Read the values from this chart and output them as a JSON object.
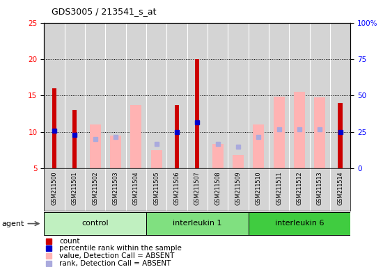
{
  "title": "GDS3005 / 213541_s_at",
  "samples": [
    "GSM211500",
    "GSM211501",
    "GSM211502",
    "GSM211503",
    "GSM211504",
    "GSM211505",
    "GSM211506",
    "GSM211507",
    "GSM211508",
    "GSM211509",
    "GSM211510",
    "GSM211511",
    "GSM211512",
    "GSM211513",
    "GSM211514"
  ],
  "red_bars": [
    16,
    13,
    null,
    null,
    null,
    null,
    13.7,
    20,
    null,
    null,
    null,
    null,
    null,
    null,
    14
  ],
  "pink_bars": [
    null,
    null,
    11,
    9.5,
    13.7,
    7.5,
    null,
    null,
    8.3,
    6.8,
    11,
    14.8,
    15.5,
    14.7,
    null
  ],
  "blue_squares": [
    10.2,
    9.6,
    null,
    null,
    null,
    null,
    10,
    11.3,
    null,
    null,
    null,
    null,
    null,
    null,
    10
  ],
  "purple_squares": [
    null,
    null,
    9.0,
    9.3,
    null,
    8.3,
    null,
    null,
    8.3,
    8.0,
    9.3,
    10.3,
    10.3,
    10.3,
    null
  ],
  "ylim": [
    5,
    25
  ],
  "yticks_left": [
    5,
    10,
    15,
    20,
    25
  ],
  "yticks_right": [
    0,
    25,
    50,
    75,
    100
  ],
  "red_color": "#cc0000",
  "pink_color": "#ffb3b3",
  "blue_color": "#0000cc",
  "purple_color": "#aaaadd",
  "plot_bg": "#d4d4d4",
  "group_colors": [
    "#c0f0c0",
    "#80e080",
    "#40cc40"
  ],
  "group_names": [
    "control",
    "interleukin 1",
    "interleukin 6"
  ],
  "group_ranges": [
    [
      0,
      4
    ],
    [
      5,
      9
    ],
    [
      10,
      14
    ]
  ],
  "agent_label": "agent",
  "legend_items": [
    [
      "#cc0000",
      "count"
    ],
    [
      "#0000cc",
      "percentile rank within the sample"
    ],
    [
      "#ffb3b3",
      "value, Detection Call = ABSENT"
    ],
    [
      "#aaaadd",
      "rank, Detection Call = ABSENT"
    ]
  ]
}
